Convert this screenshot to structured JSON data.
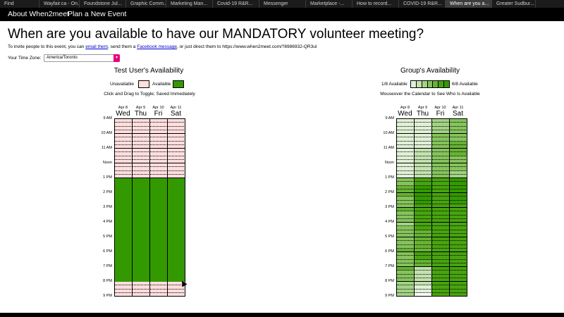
{
  "browser": {
    "tabs": [
      {
        "label": "Find",
        "width": 56
      },
      {
        "label": "Wayfair.ca - On...",
        "width": 57
      },
      {
        "label": "Foundstone Jul...",
        "width": 66
      },
      {
        "label": "Graphic Comm...",
        "width": 57
      },
      {
        "label": "Marketing Man...",
        "width": 66
      },
      {
        "label": "Covid-19 R&R...",
        "width": 66
      },
      {
        "label": "Messenger",
        "width": 66
      },
      {
        "label": "Marketplace -...",
        "width": 66
      },
      {
        "label": "How to record...",
        "width": 66
      },
      {
        "label": "COVID-19 R&R...",
        "width": 66
      },
      {
        "label": "When are you a...",
        "width": 66,
        "active": true
      },
      {
        "label": "Greater Sudbur...",
        "width": 62
      }
    ]
  },
  "nav": {
    "about": "About When2meet",
    "plan": "Plan a New Event"
  },
  "header": {
    "title": "When are you available to have our MANDATORY volunteer meeting?"
  },
  "invite": {
    "prefix": "To invite people to this event, you can ",
    "email_link": "email them",
    "middle": ", send them a ",
    "facebook_link": "Facebook message",
    "suffix": ", or just direct them to https://www.when2meet.com/?8986932-QR3ul"
  },
  "timezone": {
    "label": "Your Time Zone:",
    "value": "America/Toronto"
  },
  "colors": {
    "unavailable": "#ffdede",
    "available": "#339900",
    "group_scale": [
      "#ffffff",
      "#e0f0d6",
      "#c2e1ae",
      "#a3d285",
      "#85c35c",
      "#66b333",
      "#47a30f",
      "#339900"
    ]
  },
  "user": {
    "title": "Test User's Availability",
    "legend_unavailable": "Unavailable",
    "legend_available": "Available",
    "hint": "Click and Drag to Toggle; Saved Immediately"
  },
  "group": {
    "title": "Group's Availability",
    "legend_min": "1/8 Available",
    "legend_max": "6/8 Available",
    "hint": "Mouseover the Calendar to See Who Is Available"
  },
  "days": [
    {
      "date": "Apr 8",
      "day": "Wed"
    },
    {
      "date": "Apr 9",
      "day": "Thu"
    },
    {
      "date": "Apr 10",
      "day": "Fri"
    },
    {
      "date": "Apr 11",
      "day": "Sat"
    }
  ],
  "times": [
    "9 AM",
    "10 AM",
    "11 AM",
    "Noon",
    "1 PM",
    "2 PM",
    "3 PM",
    "4 PM",
    "5 PM",
    "6 PM",
    "7 PM",
    "8 PM",
    "9 PM"
  ],
  "user_availability": {
    "available_from_slot": 16,
    "available_to_slot": 44
  },
  "group_levels": [
    [
      1,
      1,
      1,
      1,
      1,
      1,
      1,
      1,
      1,
      1,
      1,
      1,
      1,
      1,
      1,
      1,
      4,
      4,
      5,
      5,
      5,
      4,
      4,
      4,
      5,
      4,
      4,
      4,
      3,
      4,
      4,
      4,
      4,
      4,
      4,
      5,
      4,
      4,
      4,
      4,
      5,
      4,
      4,
      4,
      3,
      3,
      3,
      3
    ],
    [
      1,
      1,
      1,
      1,
      1,
      1,
      1,
      1,
      2,
      2,
      2,
      2,
      2,
      2,
      2,
      2,
      6,
      6,
      7,
      7,
      7,
      7,
      7,
      6,
      6,
      6,
      6,
      6,
      6,
      6,
      5,
      5,
      5,
      5,
      5,
      5,
      6,
      6,
      5,
      5,
      2,
      2,
      2,
      2,
      2,
      1,
      1,
      0
    ],
    [
      3,
      3,
      3,
      3,
      4,
      4,
      4,
      4,
      4,
      4,
      4,
      4,
      4,
      4,
      4,
      4,
      6,
      6,
      6,
      6,
      6,
      6,
      6,
      6,
      6,
      6,
      6,
      6,
      6,
      6,
      6,
      6,
      6,
      6,
      6,
      6,
      6,
      6,
      6,
      6,
      6,
      6,
      6,
      6,
      6,
      6,
      6,
      6
    ],
    [
      4,
      4,
      4,
      4,
      4,
      4,
      5,
      5,
      5,
      5,
      4,
      4,
      4,
      4,
      3,
      3,
      7,
      7,
      7,
      7,
      7,
      7,
      7,
      6,
      6,
      6,
      6,
      6,
      6,
      6,
      6,
      6,
      6,
      6,
      6,
      6,
      6,
      6,
      6,
      6,
      6,
      6,
      6,
      6,
      6,
      6,
      6,
      6
    ]
  ]
}
